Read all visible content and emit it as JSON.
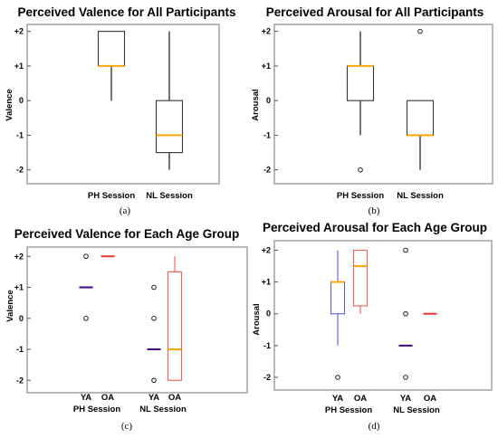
{
  "chart_data": [
    {
      "panel": "(a)",
      "type": "box",
      "title": "Perceived Valence for All Participants",
      "ylabel": "Valence",
      "ylim": [
        -2.4,
        2.2
      ],
      "y_ticks": [
        "+2",
        "+1",
        "0",
        "-1",
        "-2"
      ],
      "categories": [
        "PH Session",
        "NL Session"
      ],
      "boxes": [
        {
          "category": "PH Session",
          "min": 0,
          "q1": 1,
          "median": 1,
          "q3": 2,
          "max": 2,
          "outliers": []
        },
        {
          "category": "NL Session",
          "min": -2,
          "q1": -1.5,
          "median": -1,
          "q3": 0,
          "max": 2,
          "outliers": []
        }
      ]
    },
    {
      "panel": "(b)",
      "type": "box",
      "title": "Perceived Arousal for All Participants",
      "ylabel": "Arousal",
      "ylim": [
        -2.4,
        2.2
      ],
      "y_ticks": [
        "+2",
        "+1",
        "0",
        "-1",
        "-2"
      ],
      "categories": [
        "PH Session",
        "NL Session"
      ],
      "boxes": [
        {
          "category": "PH Session",
          "min": -1,
          "q1": 0,
          "median": 1,
          "q3": 1,
          "max": 2,
          "outliers": [
            -2
          ]
        },
        {
          "category": "NL Session",
          "min": -2,
          "q1": -1,
          "median": -1,
          "q3": 0,
          "max": 0,
          "outliers": [
            2
          ]
        }
      ]
    },
    {
      "panel": "(c)",
      "type": "box",
      "title": "Perceived Valence for Each Age Group",
      "ylabel": "Valence",
      "ylim": [
        -2.4,
        2.3
      ],
      "y_ticks": [
        "+2",
        "+1",
        "0",
        "-1",
        "-2"
      ],
      "groups": [
        "PH Session",
        "NL Session"
      ],
      "sub_categories": [
        "YA",
        "OA"
      ],
      "boxes": [
        {
          "group": "PH Session",
          "category": "YA",
          "min": 1,
          "q1": 1,
          "median": 1,
          "q3": 1,
          "max": 1,
          "outliers": [
            2,
            0
          ],
          "color": "#4b0082"
        },
        {
          "group": "PH Session",
          "category": "OA",
          "min": 2,
          "q1": 2,
          "median": 2,
          "q3": 2,
          "max": 2,
          "outliers": [],
          "color": "#e8322a"
        },
        {
          "group": "NL Session",
          "category": "YA",
          "min": -1,
          "q1": -1,
          "median": -1,
          "q3": -1,
          "max": -1,
          "outliers": [
            1,
            0,
            -2
          ],
          "color": "#4b0082"
        },
        {
          "group": "NL Session",
          "category": "OA",
          "min": -2,
          "q1": -2,
          "median": -1,
          "q3": 1.5,
          "max": 2,
          "outliers": [],
          "color": "#f25a5a"
        }
      ]
    },
    {
      "panel": "(d)",
      "type": "box",
      "title": "Perceived Arousal for Each Age Group",
      "ylabel": "Arousal",
      "ylim": [
        -2.4,
        2.3
      ],
      "y_ticks": [
        "+2",
        "+1",
        "0",
        "-1",
        "-2"
      ],
      "groups": [
        "PH Session",
        "NL Session"
      ],
      "sub_categories": [
        "YA",
        "OA"
      ],
      "boxes": [
        {
          "group": "PH Session",
          "category": "YA",
          "min": -1,
          "q1": 0,
          "median": 1,
          "q3": 1,
          "max": 2,
          "outliers": [
            -2
          ],
          "color": "#5a5ae6"
        },
        {
          "group": "PH Session",
          "category": "OA",
          "min": 0,
          "q1": 0.25,
          "median": 1.5,
          "q3": 2,
          "max": 2,
          "outliers": [],
          "color": "#f25a5a"
        },
        {
          "group": "NL Session",
          "category": "YA",
          "min": -1,
          "q1": -1,
          "median": -1,
          "q3": -1,
          "max": -1,
          "outliers": [
            2,
            0,
            -2
          ],
          "color": "#4b0082"
        },
        {
          "group": "NL Session",
          "category": "OA",
          "min": 0,
          "q1": 0,
          "median": 0,
          "q3": 0,
          "max": 0,
          "outliers": [],
          "color": "#e8322a"
        }
      ]
    }
  ],
  "colors": {
    "median": "#ffa500",
    "whisker": "#000000",
    "frame": "#8a8a8a"
  }
}
